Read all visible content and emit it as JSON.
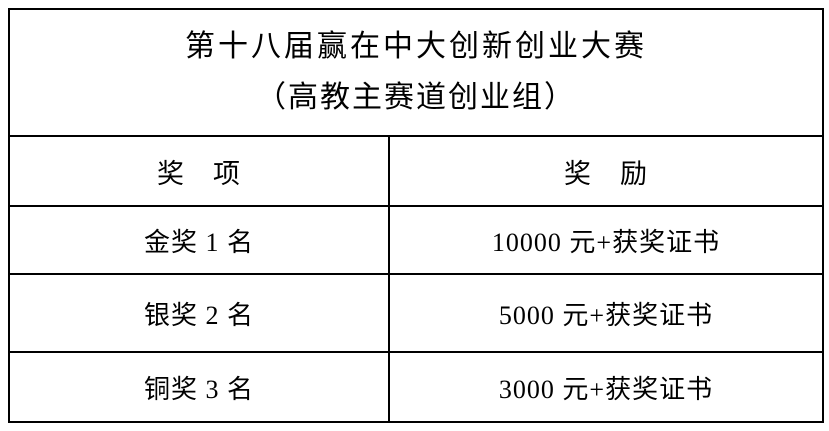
{
  "table": {
    "title_line1": "第十八届赢在中大创新创业大赛",
    "title_line2": "（高教主赛道创业组）",
    "columns": {
      "award": "奖　项",
      "prize": "奖　励"
    },
    "rows": [
      {
        "award": "金奖 1 名",
        "prize": "10000 元+获奖证书"
      },
      {
        "award": "银奖 2 名",
        "prize": "5000 元+获奖证书"
      },
      {
        "award": "铜奖 3 名",
        "prize": "3000 元+获奖证书"
      }
    ]
  },
  "colors": {
    "border": "#000000",
    "text": "#000000",
    "background": "#ffffff"
  }
}
